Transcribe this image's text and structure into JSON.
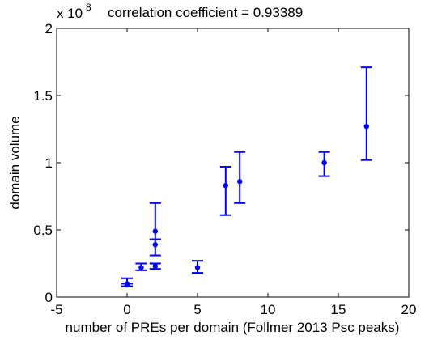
{
  "chart_data": {
    "type": "scatter",
    "title": "correlation coefficient = 0.93389",
    "xlabel": "number of PREs per domain (Follmer 2013 Psc peaks)",
    "ylabel": "domain volume",
    "y_exponent_label": "x 10",
    "y_exponent_power": "8",
    "xlim": [
      -5,
      20
    ],
    "ylim": [
      0,
      2
    ],
    "x_ticks": [
      -5,
      0,
      5,
      10,
      15,
      20
    ],
    "x_tick_labels": [
      "-5",
      "0",
      "5",
      "10",
      "15",
      "20"
    ],
    "y_ticks": [
      0,
      0.5,
      1,
      1.5,
      2
    ],
    "y_tick_labels": [
      "0",
      "0.5",
      "1",
      "1.5",
      "2"
    ],
    "grid": false,
    "legend": "none",
    "marker_color": "#0000ff",
    "points": [
      {
        "x": 0,
        "y": 0.1,
        "err_low": 0.08,
        "err_high": 0.14
      },
      {
        "x": 0,
        "y": 0.09,
        "err_low": 0.08,
        "err_high": 0.1
      },
      {
        "x": 1,
        "y": 0.22,
        "err_low": 0.2,
        "err_high": 0.25
      },
      {
        "x": 2,
        "y": 0.23,
        "err_low": 0.21,
        "err_high": 0.25
      },
      {
        "x": 2,
        "y": 0.39,
        "err_low": 0.31,
        "err_high": 0.43
      },
      {
        "x": 2,
        "y": 0.49,
        "err_low": 0.43,
        "err_high": 0.7
      },
      {
        "x": 5,
        "y": 0.22,
        "err_low": 0.18,
        "err_high": 0.27
      },
      {
        "x": 7,
        "y": 0.83,
        "err_low": 0.61,
        "err_high": 0.97
      },
      {
        "x": 8,
        "y": 0.86,
        "err_low": 0.7,
        "err_high": 1.08
      },
      {
        "x": 14,
        "y": 1.0,
        "err_low": 0.9,
        "err_high": 1.08
      },
      {
        "x": 17,
        "y": 1.27,
        "err_low": 1.02,
        "err_high": 1.71
      }
    ]
  }
}
